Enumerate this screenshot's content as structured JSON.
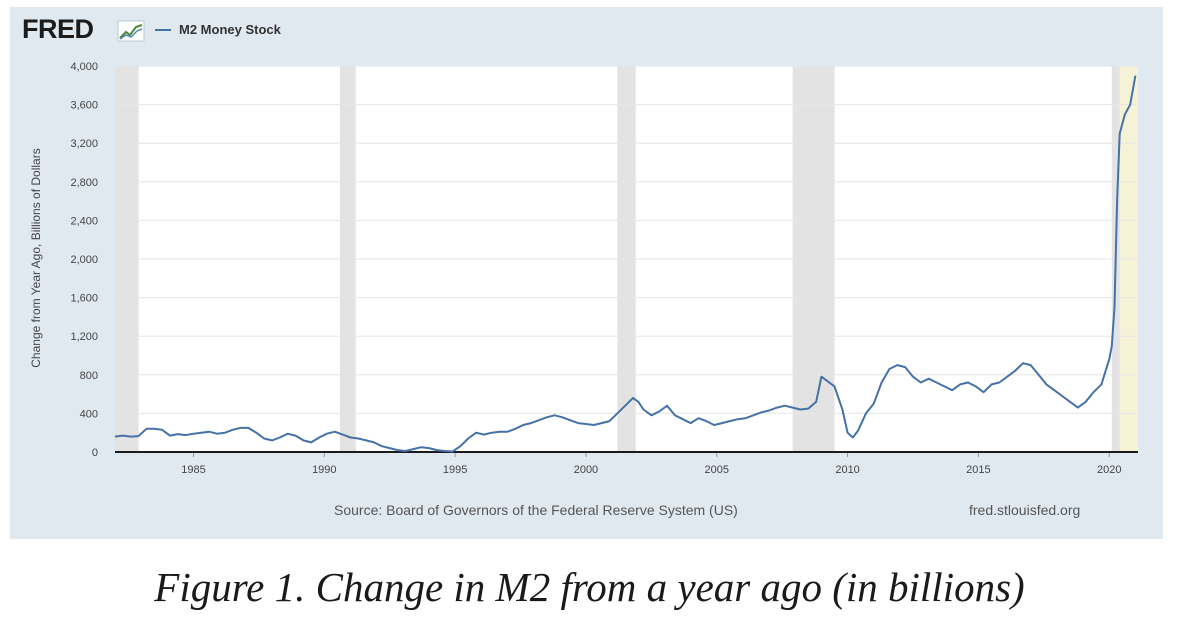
{
  "logo_text": "FRED",
  "legend": {
    "series_name": "M2 Money Stock"
  },
  "source": "Source: Board of Governors of the Federal Reserve System (US)",
  "site": "fred.stlouisfed.org",
  "caption": "Figure 1. Change in M2 from a year ago (in billions)",
  "colors": {
    "series": "#4572a7",
    "panel_bg": "#e1e9f0",
    "recession": "#e3e3e3",
    "highlight": "#f6f2d8"
  },
  "chart_data": {
    "type": "line",
    "title": "M2 Money Stock",
    "xlabel": "",
    "ylabel": "Change from Year Ago, Billions of Dollars",
    "xlim": [
      1982.0,
      2021.1
    ],
    "ylim": [
      0,
      4000
    ],
    "yticks": [
      0,
      400,
      800,
      1200,
      1600,
      2000,
      2400,
      2800,
      3200,
      3600,
      4000
    ],
    "ytick_labels": [
      "0",
      "400",
      "800",
      "1,200",
      "1,600",
      "2,000",
      "2,400",
      "2,800",
      "3,200",
      "3,600",
      "4,000"
    ],
    "xticks": [
      1985,
      1990,
      1995,
      2000,
      2005,
      2010,
      2015,
      2020
    ],
    "xtick_labels": [
      "1985",
      "1990",
      "1995",
      "2000",
      "2005",
      "2010",
      "2015",
      "2020"
    ],
    "recessions": [
      [
        1982.0,
        1982.9
      ],
      [
        1990.6,
        1991.2
      ],
      [
        2001.2,
        2001.9
      ],
      [
        2007.9,
        2009.5
      ],
      [
        2020.1,
        2020.4
      ]
    ],
    "highlight_range": [
      2020.1,
      2021.1
    ],
    "series": [
      {
        "name": "M2 Money Stock",
        "x": [
          1982.0,
          1982.3,
          1982.6,
          1982.9,
          1983.2,
          1983.5,
          1983.8,
          1984.1,
          1984.4,
          1984.7,
          1985.0,
          1985.3,
          1985.6,
          1985.9,
          1986.2,
          1986.5,
          1986.8,
          1987.1,
          1987.4,
          1987.7,
          1988.0,
          1988.3,
          1988.6,
          1988.9,
          1989.2,
          1989.5,
          1989.8,
          1990.1,
          1990.4,
          1990.7,
          1991.0,
          1991.3,
          1991.6,
          1991.9,
          1992.2,
          1992.5,
          1992.8,
          1993.1,
          1993.4,
          1993.7,
          1994.0,
          1994.3,
          1994.6,
          1994.9,
          1995.2,
          1995.5,
          1995.8,
          1996.1,
          1996.4,
          1996.7,
          1997.0,
          1997.3,
          1997.6,
          1997.9,
          1998.2,
          1998.5,
          1998.8,
          1999.1,
          1999.4,
          1999.7,
          2000.0,
          2000.3,
          2000.6,
          2000.9,
          2001.2,
          2001.5,
          2001.8,
          2002.0,
          2002.2,
          2002.5,
          2002.8,
          2003.1,
          2003.4,
          2003.7,
          2004.0,
          2004.3,
          2004.6,
          2004.9,
          2005.2,
          2005.5,
          2005.8,
          2006.1,
          2006.4,
          2006.7,
          2007.0,
          2007.3,
          2007.6,
          2007.9,
          2008.2,
          2008.5,
          2008.8,
          2009.0,
          2009.2,
          2009.5,
          2009.8,
          2010.0,
          2010.2,
          2010.4,
          2010.7,
          2011.0,
          2011.3,
          2011.6,
          2011.9,
          2012.2,
          2012.5,
          2012.8,
          2013.1,
          2013.4,
          2013.7,
          2014.0,
          2014.3,
          2014.6,
          2014.9,
          2015.2,
          2015.5,
          2015.8,
          2016.1,
          2016.4,
          2016.7,
          2017.0,
          2017.3,
          2017.6,
          2017.9,
          2018.2,
          2018.5,
          2018.8,
          2019.1,
          2019.4,
          2019.7,
          2020.0,
          2020.1,
          2020.2,
          2020.3,
          2020.4,
          2020.6,
          2020.8,
          2021.0
        ],
        "values": [
          160,
          170,
          160,
          165,
          240,
          240,
          230,
          170,
          185,
          175,
          190,
          200,
          210,
          190,
          200,
          230,
          250,
          250,
          200,
          140,
          120,
          150,
          190,
          170,
          120,
          100,
          150,
          190,
          210,
          180,
          150,
          140,
          120,
          100,
          60,
          40,
          20,
          10,
          30,
          50,
          40,
          20,
          10,
          5,
          60,
          140,
          200,
          180,
          200,
          210,
          210,
          240,
          280,
          300,
          330,
          360,
          380,
          360,
          330,
          300,
          290,
          280,
          300,
          320,
          400,
          480,
          560,
          520,
          440,
          380,
          420,
          480,
          380,
          340,
          300,
          350,
          320,
          280,
          300,
          320,
          340,
          350,
          380,
          410,
          430,
          460,
          480,
          460,
          440,
          450,
          520,
          780,
          740,
          680,
          440,
          200,
          150,
          220,
          400,
          500,
          720,
          860,
          900,
          880,
          780,
          720,
          760,
          720,
          680,
          640,
          700,
          720,
          680,
          620,
          700,
          720,
          780,
          840,
          920,
          900,
          800,
          700,
          640,
          580,
          520,
          460,
          520,
          620,
          700,
          960,
          1100,
          1500,
          2600,
          3300,
          3500,
          3600,
          3900
        ]
      }
    ]
  }
}
